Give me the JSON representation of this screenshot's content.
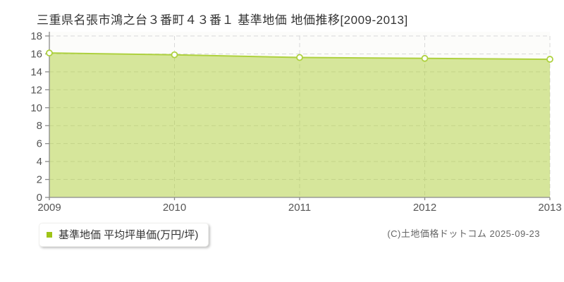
{
  "page": {
    "title": "三重県名張市鴻之台３番町４３番１  基準地価  地価推移[2009-2013]",
    "copyright": "(C)土地価格ドットコム 2025-09-23"
  },
  "legend": {
    "marker_color": "#9fc417"
  },
  "chart_data": {
    "type": "area",
    "title": "三重県名張市鴻之台３番町４３番１ 基準地価 地価推移[2009-2013]",
    "categories": [
      "2009",
      "2010",
      "2011",
      "2012",
      "2013"
    ],
    "series": [
      {
        "name": "基準地価 平均坪単価(万円/坪)",
        "values": [
          16.1,
          15.9,
          15.6,
          15.5,
          15.4
        ]
      }
    ],
    "xlabel": "",
    "ylabel": "",
    "ylim": [
      0,
      18
    ],
    "ytick_step": 2,
    "grid": true,
    "legend_position": "bottom-left",
    "colors": {
      "line": "#aed13f",
      "fill": "rgba(168,204,40,0.45)",
      "marker_fill": "#ffffff",
      "grid": "#d9d9d9",
      "axis": "#8a8a8a",
      "tick_label": "#555555",
      "plot_bg": "#fcfcfa"
    }
  }
}
